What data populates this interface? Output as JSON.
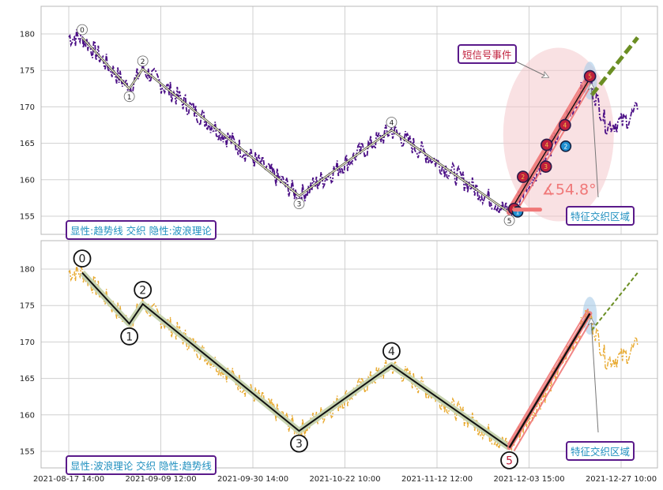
{
  "chart_data": [
    {
      "type": "line",
      "panel": "top",
      "ylim": [
        152.5,
        184
      ],
      "yticks": [
        155,
        160,
        165,
        170,
        175,
        180
      ],
      "grid": true,
      "series_color": "#4b0f86",
      "wave_points": [
        {
          "label": "0",
          "x": 0.73,
          "y": 179.5
        },
        {
          "label": "1",
          "x": 3.29,
          "y": 172.5
        },
        {
          "label": "2",
          "x": 4.02,
          "y": 175.2
        },
        {
          "label": "3",
          "x": 12.51,
          "y": 157.8
        },
        {
          "label": "4",
          "x": 17.53,
          "y": 166.8
        },
        {
          "label": "5",
          "x": 23.93,
          "y": 155.5
        }
      ],
      "signal_points": [
        {
          "label": "1",
          "x": 24.19,
          "y": 156.0,
          "color": "#c0203c"
        },
        {
          "label": "2",
          "x": 24.67,
          "y": 160.4,
          "color": "#c0203c"
        },
        {
          "label": "3",
          "x": 25.91,
          "y": 161.8,
          "color": "#c0203c"
        },
        {
          "label": "4",
          "x": 25.96,
          "y": 164.8,
          "color": "#c0203c"
        },
        {
          "label": "4",
          "x": 26.95,
          "y": 167.5,
          "color": "#c0203c"
        },
        {
          "label": "5",
          "x": 28.31,
          "y": 174.2,
          "color": "#c0203c"
        }
      ],
      "blue_points": [
        {
          "label": "1",
          "x": 24.38,
          "y": 155.6
        },
        {
          "label": "2",
          "x": 26.99,
          "y": 164.6
        }
      ],
      "angle_label": "∡54.8°",
      "annotation_event": "短信号事件",
      "annotation_zone": "特征交织区域",
      "legend": "显性:趋势线 交织 隐性:波浪理论"
    },
    {
      "type": "line",
      "panel": "bottom",
      "ylim": [
        152.5,
        184
      ],
      "yticks": [
        155,
        160,
        165,
        170,
        175,
        180
      ],
      "grid": true,
      "series_color": "#e8a92e",
      "wave_points": [
        {
          "label": "0",
          "x": 0.73,
          "y": 179.5
        },
        {
          "label": "1",
          "x": 3.29,
          "y": 172.5
        },
        {
          "label": "2",
          "x": 4.02,
          "y": 175.2
        },
        {
          "label": "3",
          "x": 12.51,
          "y": 157.8
        },
        {
          "label": "4",
          "x": 17.53,
          "y": 166.8
        },
        {
          "label": "5",
          "x": 23.93,
          "y": 155.5
        }
      ],
      "annotation_zone": "特征交织区域",
      "legend": "显性:波浪理论 交织 隐性:趋势线"
    }
  ],
  "x_ticks": [
    {
      "pos": 0,
      "label": "2021-08-17 14:00"
    },
    {
      "pos": 5,
      "label": "2021-09-09 12:00"
    },
    {
      "pos": 10,
      "label": "2021-09-30 14:00"
    },
    {
      "pos": 15,
      "label": "2021-10-22 10:00"
    },
    {
      "pos": 20,
      "label": "2021-11-12 12:00"
    },
    {
      "pos": 25,
      "label": "2021-12-03 15:00"
    },
    {
      "pos": 30,
      "label": "2021-12-27 10:00"
    }
  ],
  "colors": {
    "trend_pink": "#f07878",
    "forecast_green": "#6b8e23",
    "wave_shadow": "#c8d4b0",
    "legend_text": "#1f8fbf",
    "legend_border": "#5a1a8a",
    "event_text": "#c0203c"
  }
}
